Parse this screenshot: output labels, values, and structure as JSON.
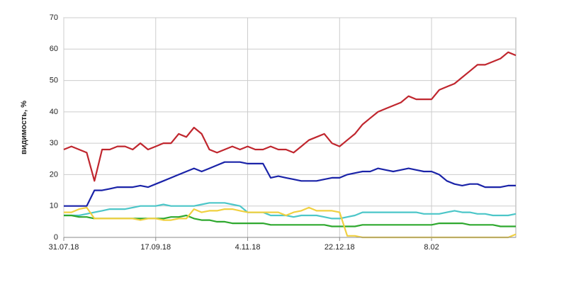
{
  "chart_data": {
    "type": "line",
    "ylabel": "видимость, %",
    "categories": [
      "31.07.18",
      null,
      null,
      null,
      null,
      null,
      null,
      null,
      null,
      null,
      null,
      null,
      "17.09.18",
      null,
      null,
      null,
      null,
      null,
      null,
      null,
      null,
      null,
      null,
      null,
      "4.11.18",
      null,
      null,
      null,
      null,
      null,
      null,
      null,
      null,
      null,
      null,
      null,
      "22.12.18",
      null,
      null,
      null,
      null,
      null,
      null,
      null,
      null,
      null,
      null,
      null,
      "8.02",
      null,
      null,
      null,
      null,
      null,
      null,
      null,
      null,
      null,
      null,
      null
    ],
    "ylim": [
      0,
      70
    ],
    "yticks": [
      0,
      10,
      20,
      30,
      40,
      50,
      60,
      70
    ],
    "grid": true,
    "series": [
      {
        "color": "#c0262e",
        "values": [
          28,
          29,
          28,
          27,
          18,
          28,
          28,
          29,
          29,
          28,
          30,
          28,
          29,
          30,
          30,
          33,
          32,
          35,
          33,
          28,
          27,
          28,
          29,
          28,
          29,
          28,
          28,
          29,
          28,
          28,
          27,
          29,
          31,
          32,
          33,
          30,
          29,
          31,
          33,
          36,
          38,
          40,
          41,
          42,
          43,
          45,
          44,
          44,
          44,
          47,
          48,
          49,
          51,
          53,
          55,
          55,
          56,
          57,
          59,
          58
        ]
      },
      {
        "color": "#1a23a8",
        "values": [
          10,
          10,
          10,
          10,
          15,
          15,
          15.5,
          16,
          16,
          16,
          16.5,
          16,
          17,
          18,
          19,
          20,
          21,
          22,
          21,
          22,
          23,
          24,
          24,
          24,
          23.5,
          23.5,
          23.5,
          19,
          19.5,
          19,
          18.5,
          18,
          18,
          18,
          18.5,
          19,
          19,
          20,
          20.5,
          21,
          21,
          22,
          21.5,
          21,
          21.5,
          22,
          21.5,
          21,
          21,
          20,
          18,
          17,
          16.5,
          17,
          17,
          16,
          16,
          16,
          16.5,
          16.5
        ]
      },
      {
        "color": "#4cc6c8",
        "values": [
          7,
          7,
          7,
          7.5,
          8,
          8.5,
          9,
          9,
          9,
          9.5,
          10,
          10,
          10,
          10.5,
          10,
          10,
          10,
          10,
          10.5,
          11,
          11,
          11,
          10.5,
          10,
          8,
          8,
          8,
          7,
          7,
          7,
          6.5,
          7,
          7,
          7,
          6.5,
          6,
          6,
          6.5,
          7,
          8,
          8,
          8,
          8,
          8,
          8,
          8,
          8,
          7.5,
          7.5,
          7.5,
          8,
          8.5,
          8,
          8,
          7.5,
          7.5,
          7,
          7,
          7,
          7.5
        ]
      },
      {
        "color": "#2ea82e",
        "values": [
          7,
          7,
          6.5,
          6.5,
          6,
          6,
          6,
          6,
          6,
          6,
          6,
          6,
          6,
          6,
          6.5,
          6.5,
          7,
          6,
          5.5,
          5.5,
          5,
          5,
          4.5,
          4.5,
          4.5,
          4.5,
          4.5,
          4,
          4,
          4,
          4,
          4,
          4,
          4,
          4,
          3.5,
          3.5,
          3.5,
          3.5,
          4,
          4,
          4,
          4,
          4,
          4,
          4,
          4,
          4,
          4,
          4.5,
          4.5,
          4.5,
          4.5,
          4,
          4,
          4,
          4,
          3.5,
          3.5,
          3.5
        ]
      },
      {
        "color": "#f0d040",
        "values": [
          8,
          8,
          9,
          9.5,
          6,
          6,
          6,
          6,
          6,
          6,
          5.5,
          6,
          6,
          5.5,
          5.5,
          6,
          6,
          9,
          8,
          8.5,
          8.5,
          9,
          9,
          8.5,
          8,
          8,
          8,
          8,
          8,
          7,
          8,
          8.5,
          9.5,
          8.5,
          8.5,
          8.5,
          8,
          0.5,
          0.5,
          0,
          0,
          0,
          0,
          0,
          0,
          0,
          0,
          0,
          0,
          0,
          0,
          0,
          0,
          0,
          0,
          0,
          0,
          0,
          0,
          1
        ]
      }
    ]
  }
}
